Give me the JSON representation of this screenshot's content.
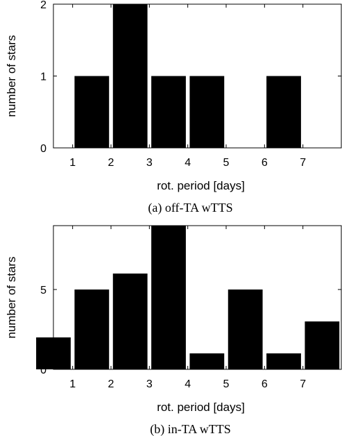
{
  "chart_data": [
    {
      "type": "bar",
      "x": [
        1.5,
        2.5,
        3.5,
        4.5,
        5.5,
        6.5,
        7.5
      ],
      "values": [
        1,
        2,
        1,
        1,
        0,
        1,
        0
      ],
      "bin_width": 1,
      "xlim": [
        0.5,
        8
      ],
      "ylim": [
        0,
        2
      ],
      "xticks": [
        "1",
        "2",
        "3",
        "4",
        "5",
        "6",
        "7"
      ],
      "yticks": [
        "0",
        "1",
        "2"
      ],
      "xlabel": "rot. period [days]",
      "ylabel": "number of stars",
      "caption": "(a) off-TA wTTS",
      "bar_color": "#000000"
    },
    {
      "type": "bar",
      "x": [
        0.5,
        1.5,
        2.5,
        3.5,
        4.5,
        5.5,
        6.5,
        7.5
      ],
      "values": [
        2,
        5,
        6,
        9,
        1,
        5,
        1,
        3
      ],
      "bin_width": 1,
      "xlim": [
        0.5,
        8
      ],
      "ylim": [
        0,
        9
      ],
      "xticks": [
        "1",
        "2",
        "3",
        "4",
        "5",
        "6",
        "7"
      ],
      "yticks": [
        "0",
        "5"
      ],
      "xlabel": "rot. period [days]",
      "ylabel": "number of stars",
      "caption": "(b) in-TA wTTS",
      "bar_color": "#000000"
    }
  ]
}
